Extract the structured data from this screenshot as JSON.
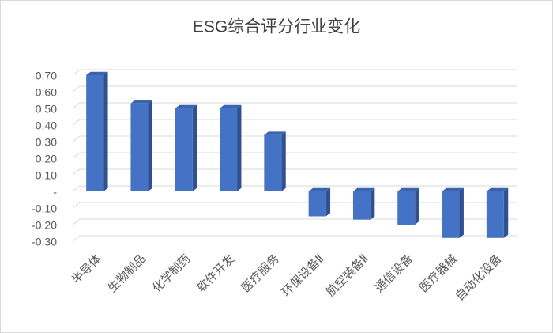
{
  "chart_data": {
    "type": "bar3d",
    "title": "ESG综合评分行业变化",
    "categories": [
      "半导体",
      "生物制品",
      "化学制药",
      "软件开发",
      "医疗服务",
      "环保设备Ⅱ",
      "航空装备Ⅱ",
      "通信设备",
      "医疗器械",
      "自动化设备"
    ],
    "values": [
      0.7,
      0.53,
      0.5,
      0.5,
      0.34,
      -0.15,
      -0.17,
      -0.2,
      -0.28,
      -0.28
    ],
    "color": "#4472c4",
    "ylim": [
      -0.3,
      0.7
    ],
    "yticks": [
      {
        "value": 0.7,
        "label": "0.70"
      },
      {
        "value": 0.6,
        "label": "0.60"
      },
      {
        "value": 0.5,
        "label": "0.50"
      },
      {
        "value": 0.4,
        "label": "0.40"
      },
      {
        "value": 0.3,
        "label": "0.30"
      },
      {
        "value": 0.2,
        "label": "0.20"
      },
      {
        "value": 0.1,
        "label": "0.10"
      },
      {
        "value": 0,
        "label": "-"
      },
      {
        "value": -0.1,
        "label": "-0.10"
      },
      {
        "value": -0.2,
        "label": "-0.20"
      },
      {
        "value": -0.3,
        "label": "-0.30"
      }
    ],
    "grid": true
  }
}
